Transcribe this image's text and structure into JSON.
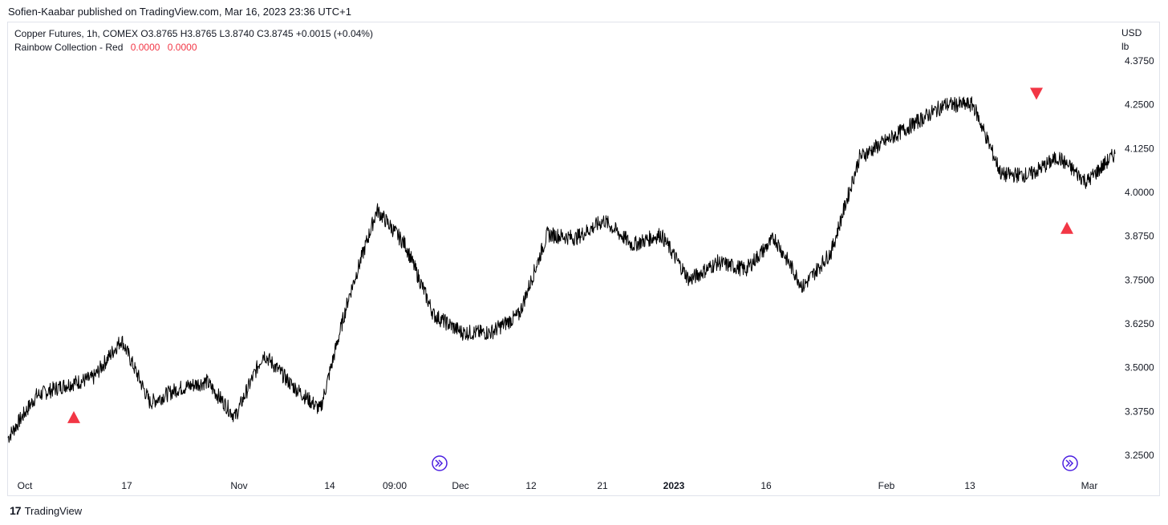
{
  "header": {
    "publisher_line": "Sofien-Kaabar published on TradingView.com, Mar 16, 2023 23:36 UTC+1"
  },
  "legend": {
    "symbol_line": "Copper Futures, 1h, COMEX  O3.8765  H3.8765  L3.8740  C3.8745  +0.0015 (+0.04%)",
    "indicator_name": "Rainbow Collection - Red",
    "indicator_value_1": "0.0000",
    "indicator_value_2": "0.0000"
  },
  "axis": {
    "currency": "USD",
    "unit": "lb"
  },
  "footer": {
    "brand": "TradingView",
    "logo_glyph": "17"
  },
  "colors": {
    "line": "#000000",
    "signal": "#f23645",
    "event": "#4a1ee0",
    "text": "#131722",
    "frame": "#e0e3eb"
  },
  "chart_data": {
    "type": "line",
    "series": [
      {
        "x": [
          "Oct",
          "Oct",
          "Oct",
          "Oct",
          "Oct",
          "17",
          "17",
          "17",
          "17",
          "Nov",
          "Nov",
          "Nov",
          "Nov",
          "14",
          "14",
          "14",
          "09:00",
          "09:00",
          "Dec",
          "Dec",
          "Dec",
          "12",
          "12",
          "12",
          "21",
          "21",
          "21",
          "2023",
          "2023",
          "2023",
          "16",
          "16",
          "16",
          "Feb",
          "Feb",
          "13",
          "13",
          "13",
          "Mar",
          "Mar"
        ],
        "values": [
          3.3,
          3.42,
          3.45,
          3.47,
          3.58,
          3.4,
          3.44,
          3.46,
          3.36,
          3.54,
          3.45,
          3.38,
          3.7,
          3.95,
          3.85,
          3.65,
          3.6,
          3.6,
          3.65,
          3.88,
          3.87,
          3.92,
          3.85,
          3.88,
          3.75,
          3.8,
          3.78,
          3.87,
          3.73,
          3.83,
          4.1,
          4.15,
          4.2,
          4.25,
          4.25,
          4.05,
          4.05,
          4.1,
          4.03,
          4.11
        ]
      }
    ],
    "y_ticks": [
      "4.3750",
      "4.2500",
      "4.1250",
      "4.0000",
      "3.8750",
      "3.7500",
      "3.6250",
      "3.5000",
      "3.3750",
      "3.2500"
    ],
    "y_tick_values": [
      4.375,
      4.25,
      4.125,
      4.0,
      3.875,
      3.75,
      3.625,
      3.5,
      3.375,
      3.25
    ],
    "x_ticks": [
      "Oct",
      "17",
      "Nov",
      "14",
      "09:00",
      "Dec",
      "12",
      "21",
      "2023",
      "16",
      "Feb",
      "13",
      "Mar"
    ],
    "x_bold_ticks": [
      "2023"
    ],
    "ylim": [
      3.25,
      4.375
    ],
    "signals": [
      {
        "direction": "up",
        "x": "Oct",
        "value": 3.36
      },
      {
        "direction": "down",
        "x": "Feb",
        "value": 4.28
      },
      {
        "direction": "up",
        "x": "Mar",
        "value": 3.9
      }
    ],
    "events": [
      {
        "x": "Dec",
        "icon": "double-chevron-right-icon"
      },
      {
        "x": "Mar",
        "icon": "double-chevron-right-icon"
      }
    ],
    "grid": false
  }
}
